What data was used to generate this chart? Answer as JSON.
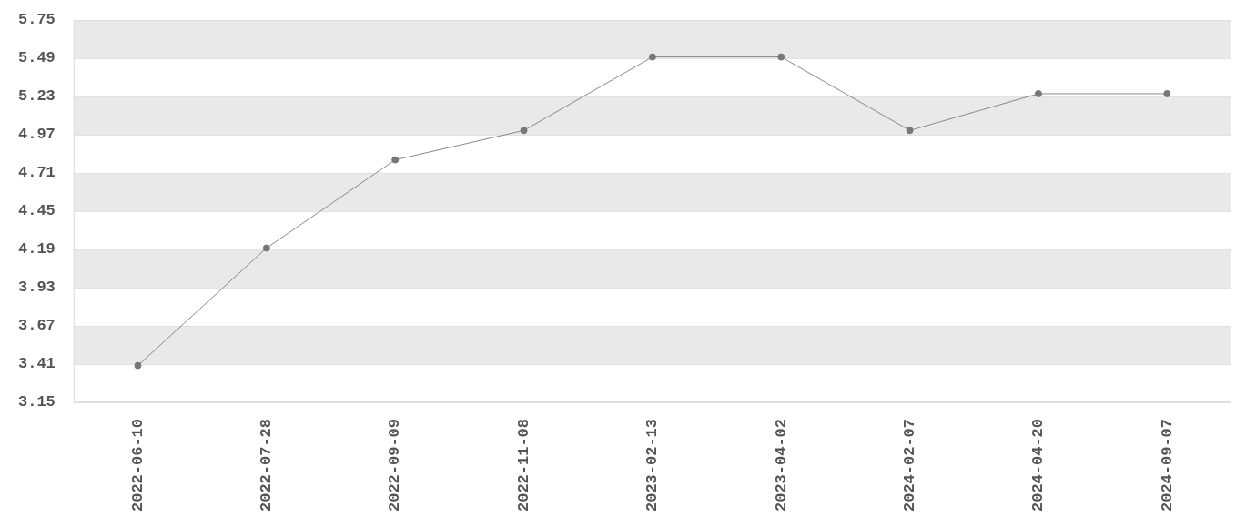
{
  "chart_data": {
    "type": "line",
    "categories": [
      "2022-06-10",
      "2022-07-28",
      "2022-09-09",
      "2022-11-08",
      "2023-02-13",
      "2023-04-02",
      "2024-02-07",
      "2024-04-20",
      "2024-09-07"
    ],
    "series": [
      {
        "color": "#777777",
        "values": [
          3.4,
          4.2,
          4.8,
          5.0,
          5.5,
          5.5,
          5.0,
          5.25,
          5.25
        ]
      }
    ],
    "ylim": [
      3.15,
      5.75
    ],
    "yticks": [
      3.15,
      3.41,
      3.67,
      3.93,
      4.19,
      4.45,
      4.71,
      4.97,
      5.23,
      5.49,
      5.75
    ],
    "grid": "y",
    "marker": "circle",
    "line_style": "solid",
    "legend": false
  }
}
